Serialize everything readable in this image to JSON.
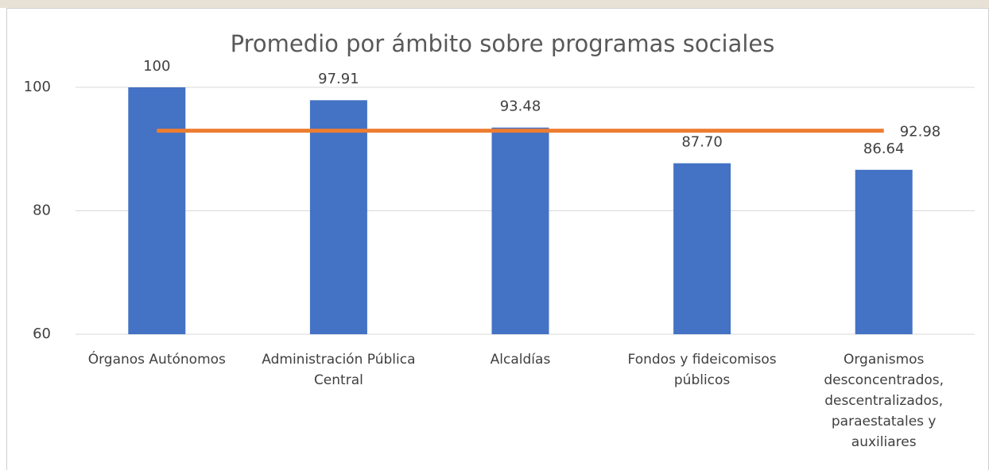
{
  "chart_data": {
    "type": "bar",
    "title": "Promedio por ámbito sobre programas sociales",
    "categories": [
      "Órganos Autónomos",
      "Administración Pública Central",
      "Alcaldías",
      "Fondos y fideicomisos públicos",
      "Organismos desconcentrados, descentralizados, paraestatales y auxiliares"
    ],
    "values": [
      100,
      97.91,
      93.48,
      87.7,
      86.64
    ],
    "value_labels": [
      "100",
      "97.91",
      "93.48",
      "87.70",
      "86.64"
    ],
    "color": "#4472c4",
    "reference_line": {
      "value": 92.98,
      "color": "#ed7d31"
    },
    "ylim": [
      60,
      100
    ],
    "yticks": [
      60,
      80,
      100
    ],
    "grid": true
  }
}
